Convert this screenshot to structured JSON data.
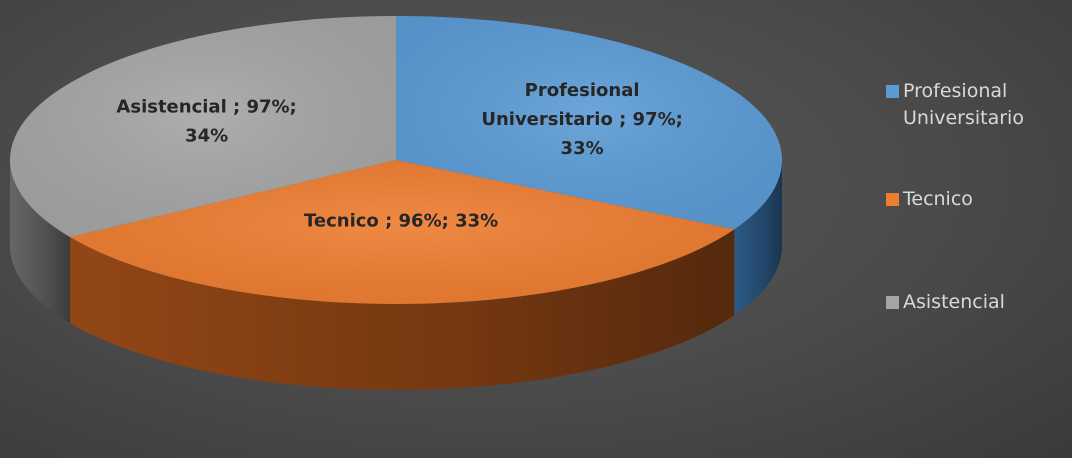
{
  "chart_data": {
    "type": "pie",
    "title": "",
    "legend_position": "right",
    "categories": [
      "Profesional Universitario",
      "Tecnico",
      "Asistencial"
    ],
    "values": [
      33,
      33,
      34
    ],
    "secondary_values": [
      "97%",
      "96%",
      "97%"
    ],
    "units": "%",
    "data_labels": [
      "Profesional Universitario ; 97%; 33%",
      "Tecnico ; 96%; 33%",
      "Asistencial ; 97%; 34%"
    ],
    "data_label_lines": [
      [
        "Profesional",
        "Universitario ; 97%;",
        "33%"
      ],
      [
        "Tecnico ; 96%; 33%"
      ],
      [
        "Asistencial ; 97%;",
        "34%"
      ]
    ],
    "colors": [
      "#5b9bd5",
      "#ed7d31",
      "#a5a5a5"
    ],
    "side_colors": [
      "#2e5f8e",
      "#9a4a17",
      "#6b6b6b"
    ],
    "legend": [
      "Profesional Universitario",
      "Tecnico",
      "Asistencial"
    ],
    "style": "3d-pie"
  }
}
